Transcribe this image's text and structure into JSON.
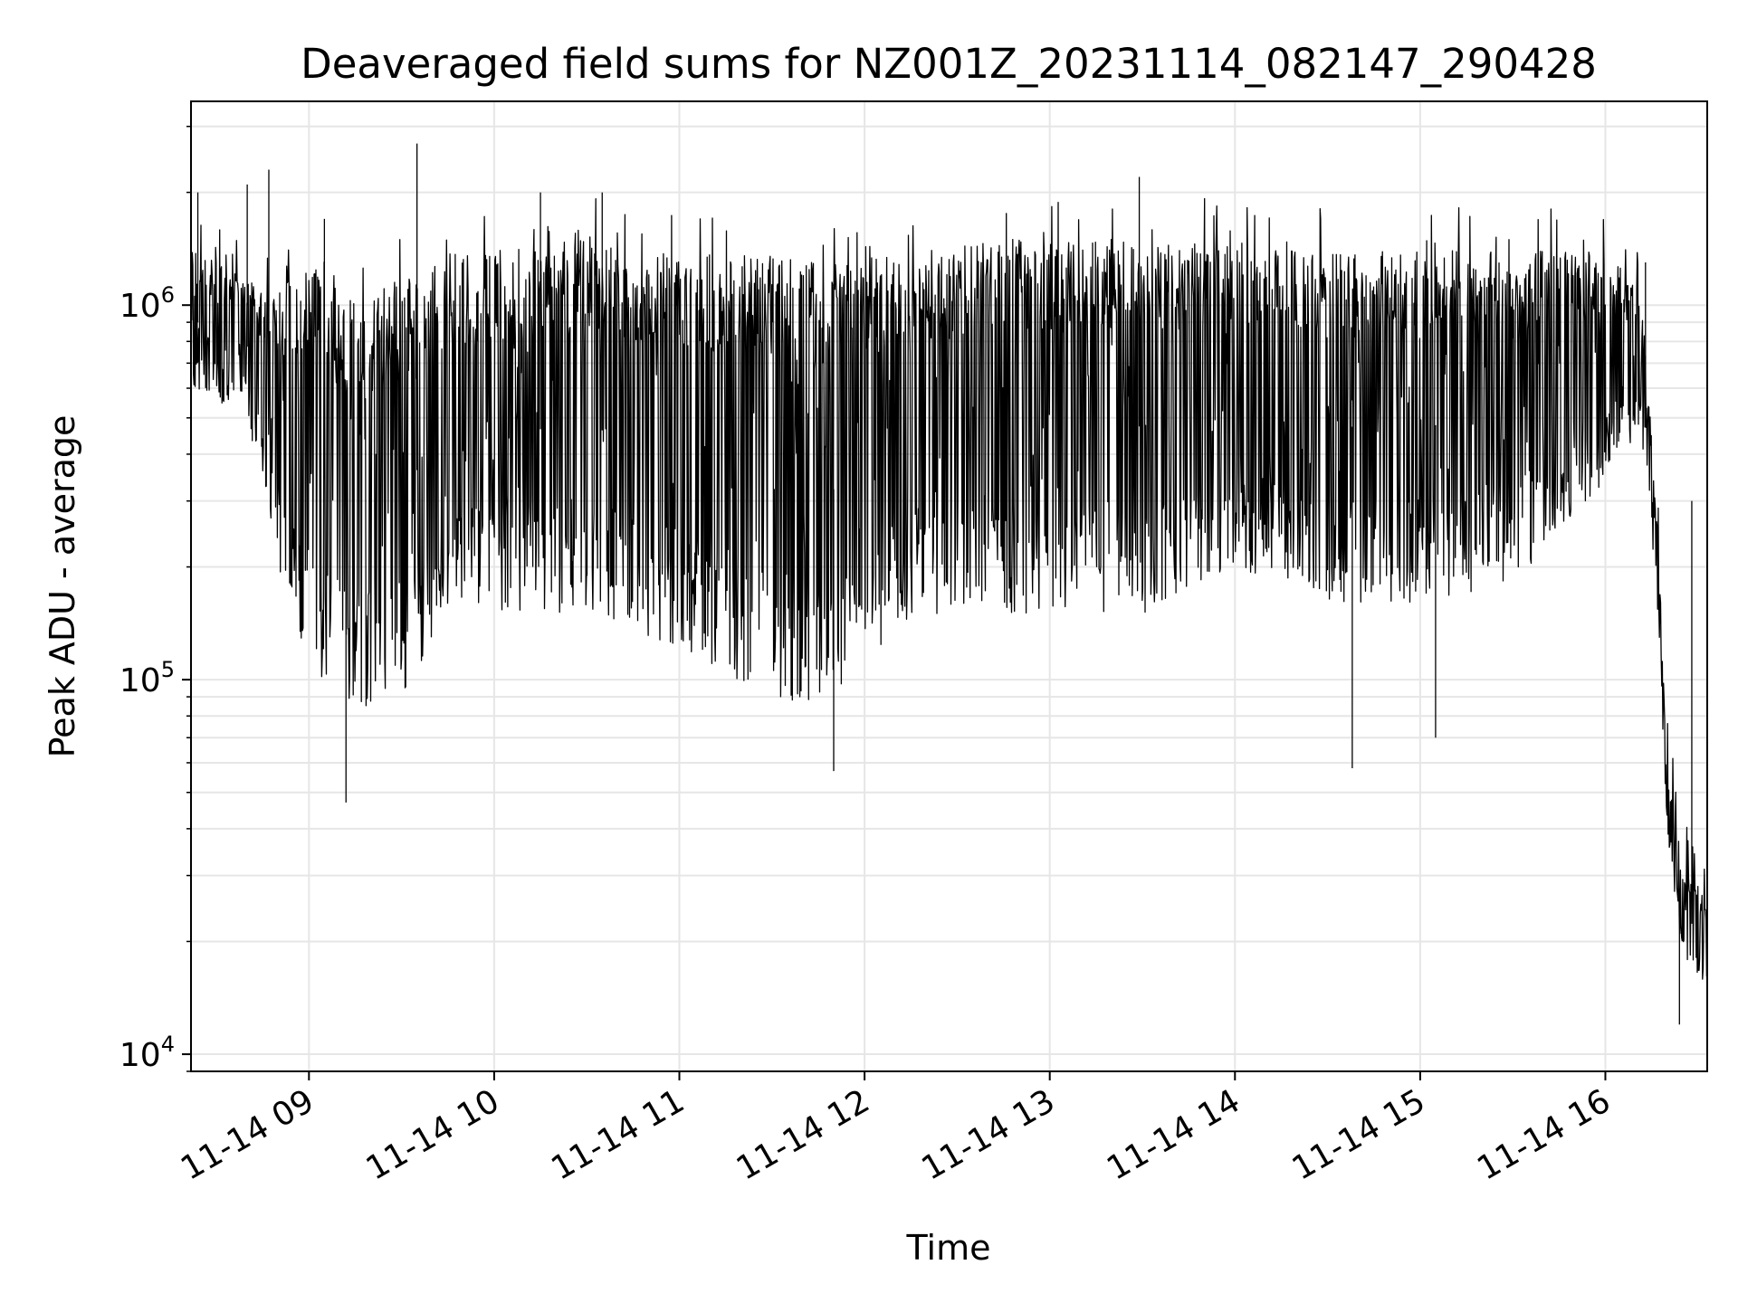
{
  "chart_data": {
    "type": "line",
    "title": "Deaveraged field sums for NZ001Z_20231114_082147_290428",
    "xlabel": "Time",
    "ylabel": "Peak ADU - average",
    "yscale": "log",
    "ylim": [
      9000,
      3500000
    ],
    "xlim": [
      "2023-11-14 08:21:47",
      "2023-11-14 16:33:00"
    ],
    "grid": true,
    "line_color": "#000000",
    "x_ticks": [
      {
        "value": "2023-11-14 09:00",
        "label": "11-14 09"
      },
      {
        "value": "2023-11-14 10:00",
        "label": "11-14 10"
      },
      {
        "value": "2023-11-14 11:00",
        "label": "11-14 11"
      },
      {
        "value": "2023-11-14 12:00",
        "label": "11-14 12"
      },
      {
        "value": "2023-11-14 13:00",
        "label": "11-14 13"
      },
      {
        "value": "2023-11-14 14:00",
        "label": "11-14 14"
      },
      {
        "value": "2023-11-14 15:00",
        "label": "11-14 15"
      },
      {
        "value": "2023-11-14 16:00",
        "label": "11-14 16"
      }
    ],
    "y_ticks": [
      {
        "value": 10000,
        "base": "10",
        "exp": "4"
      },
      {
        "value": 100000,
        "base": "10",
        "exp": "5"
      },
      {
        "value": 1000000,
        "base": "10",
        "exp": "6"
      }
    ],
    "envelope": {
      "x": [
        "2023-11-14 08:22",
        "2023-11-14 08:40",
        "2023-11-14 08:50",
        "2023-11-14 09:00",
        "2023-11-14 09:15",
        "2023-11-14 09:30",
        "2023-11-14 09:45",
        "2023-11-14 10:00",
        "2023-11-14 10:30",
        "2023-11-14 11:00",
        "2023-11-14 11:30",
        "2023-11-14 11:50",
        "2023-11-14 12:15",
        "2023-11-14 12:45",
        "2023-11-14 13:00",
        "2023-11-14 13:30",
        "2023-11-14 14:00",
        "2023-11-14 14:30",
        "2023-11-14 15:00",
        "2023-11-14 15:30",
        "2023-11-14 15:55",
        "2023-11-14 16:10",
        "2023-11-14 16:13",
        "2023-11-14 16:17",
        "2023-11-14 16:20",
        "2023-11-14 16:25",
        "2023-11-14 16:33"
      ],
      "high": [
        1400000,
        1200000,
        1100000,
        1300000,
        1000000,
        1200000,
        1300000,
        1400000,
        1500000,
        1400000,
        1400000,
        1300000,
        1400000,
        1500000,
        1500000,
        1500000,
        1450000,
        1400000,
        1400000,
        1400000,
        1400000,
        1200000,
        800000,
        250000,
        60000,
        32000,
        26000
      ],
      "low": [
        600000,
        500000,
        200000,
        110000,
        80000,
        90000,
        150000,
        150000,
        150000,
        120000,
        90000,
        80000,
        150000,
        150000,
        150000,
        150000,
        200000,
        160000,
        160000,
        180000,
        300000,
        450000,
        400000,
        150000,
        40000,
        18000,
        15000
      ]
    },
    "spikes": {
      "x": [
        "2023-11-14 08:24",
        "2023-11-14 08:40",
        "2023-11-14 08:47",
        "2023-11-14 09:05",
        "2023-11-14 09:12",
        "2023-11-14 09:35",
        "2023-11-14 10:15",
        "2023-11-14 10:35",
        "2023-11-14 11:50",
        "2023-11-14 13:29",
        "2023-11-14 14:38",
        "2023-11-14 15:05",
        "2023-11-14 16:13",
        "2023-11-14 16:24",
        "2023-11-14 16:28"
      ],
      "value": [
        2000000,
        2100000,
        2300000,
        1700000,
        47000,
        2700000,
        2000000,
        2000000,
        57000,
        2200000,
        58000,
        70000,
        1300000,
        12000,
        300000
      ]
    }
  }
}
